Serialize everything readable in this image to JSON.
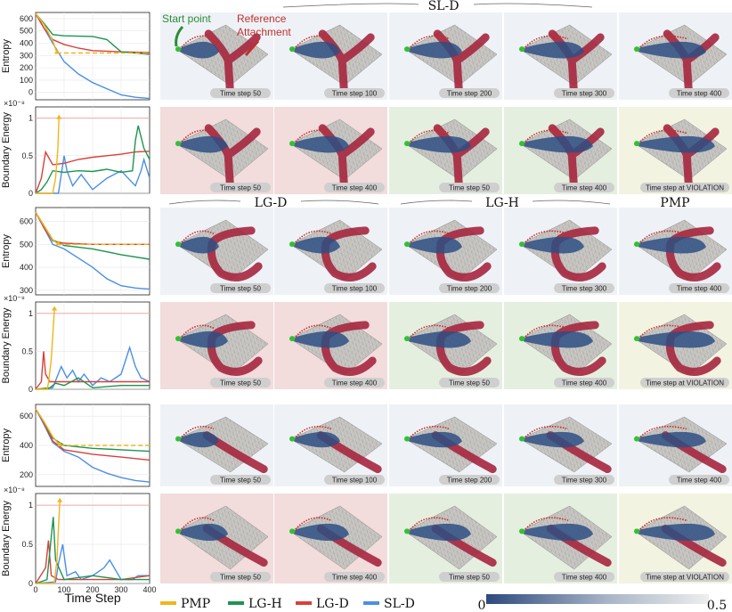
{
  "group_titles": [
    "SL-D",
    "LG-D",
    "LG-H",
    "PMP"
  ],
  "annotations": {
    "start_point": "Start point",
    "reference_attachment": "Reference Attachment"
  },
  "colors": {
    "PMP": "#f2b519",
    "LG-H": "#1e9450",
    "LG-D": "#d8403a",
    "SL-D": "#4a8fe8",
    "tile_blue": "#eef2f7",
    "tile_red": "#f2dcdc",
    "tile_green": "#e5efe0",
    "tile_yellow": "#f3f3e2",
    "cloth_grey": "#c8c7c4",
    "cloth_blue": "#2e4f82",
    "attachment": "#a6263e",
    "start": "#2fc32f"
  },
  "rows": [
    {
      "tiles": [
        {
          "label": "Time step 50",
          "bg": "blue"
        },
        {
          "label": "Time step 100",
          "bg": "blue"
        },
        {
          "label": "Time step 200",
          "bg": "blue"
        },
        {
          "label": "Time step 300",
          "bg": "blue"
        },
        {
          "label": "Time step 400",
          "bg": "blue"
        }
      ]
    },
    {
      "tiles": [
        {
          "label": "Time step 50",
          "bg": "red"
        },
        {
          "label": "Time step 400",
          "bg": "red"
        },
        {
          "label": "Time step 50",
          "bg": "green"
        },
        {
          "label": "Time step 400",
          "bg": "green"
        },
        {
          "label": "Time step at VIOLATION",
          "bg": "yellow"
        }
      ]
    },
    {
      "tiles": [
        {
          "label": "Time step 50",
          "bg": "blue"
        },
        {
          "label": "Time step 100",
          "bg": "blue"
        },
        {
          "label": "Time step 200",
          "bg": "blue"
        },
        {
          "label": "Time step 300",
          "bg": "blue"
        },
        {
          "label": "Time step 400",
          "bg": "blue"
        }
      ]
    },
    {
      "tiles": [
        {
          "label": "Time step 50",
          "bg": "red"
        },
        {
          "label": "Time step 400",
          "bg": "red"
        },
        {
          "label": "Time step 50",
          "bg": "green"
        },
        {
          "label": "Time step 400",
          "bg": "green"
        },
        {
          "label": "Time step at VIOLATION",
          "bg": "yellow"
        }
      ]
    },
    {
      "tiles": [
        {
          "label": "Time step 50",
          "bg": "blue"
        },
        {
          "label": "Time step 100",
          "bg": "blue"
        },
        {
          "label": "Time step 200",
          "bg": "blue"
        },
        {
          "label": "Time step 300",
          "bg": "blue"
        },
        {
          "label": "Time step 400",
          "bg": "blue"
        }
      ]
    },
    {
      "tiles": [
        {
          "label": "Time step 50",
          "bg": "red"
        },
        {
          "label": "Time step 400",
          "bg": "red"
        },
        {
          "label": "Time step 50",
          "bg": "green"
        },
        {
          "label": "Time step 400",
          "bg": "green"
        },
        {
          "label": "Time step at VIOLATION",
          "bg": "yellow"
        }
      ]
    }
  ],
  "shapes": [
    "Y",
    "C",
    "line"
  ],
  "legend": {
    "items": [
      "PMP",
      "LG-H",
      "LG-D",
      "SL-D"
    ],
    "colorbar_min": "0",
    "colorbar_max": "0.5"
  },
  "chart_data": [
    {
      "type": "line",
      "ylabel": "Entropy",
      "xlim": [
        0,
        400
      ],
      "ylim": [
        -60,
        650
      ],
      "yticks": [
        0,
        100,
        200,
        300,
        400,
        500,
        600
      ],
      "series": [
        {
          "name": "PMP",
          "x": [
            0,
            30,
            60,
            75
          ],
          "y": [
            640,
            550,
            420,
            320
          ],
          "dashed_after": {
            "x": [
              75,
              400
            ],
            "y": [
              320,
              320
            ]
          }
        },
        {
          "name": "LG-H",
          "x": [
            0,
            30,
            60,
            100,
            200,
            250,
            300,
            350,
            400
          ],
          "y": [
            640,
            560,
            470,
            460,
            455,
            430,
            330,
            320,
            310
          ]
        },
        {
          "name": "LG-D",
          "x": [
            0,
            30,
            60,
            100,
            150,
            200,
            300,
            400
          ],
          "y": [
            640,
            520,
            430,
            390,
            360,
            340,
            330,
            325
          ]
        },
        {
          "name": "SL-D",
          "x": [
            0,
            30,
            60,
            100,
            150,
            200,
            250,
            300,
            350,
            400
          ],
          "y": [
            640,
            520,
            400,
            250,
            150,
            80,
            30,
            -20,
            -40,
            -50
          ]
        }
      ]
    },
    {
      "type": "line",
      "ylabel": "Boundary Energy",
      "exponent": "×10⁻⁸",
      "xlim": [
        0,
        400
      ],
      "ylim": [
        0,
        1.15
      ],
      "yticks": [
        0.0,
        0.5,
        1.0
      ],
      "threshold": 1.0,
      "series": [
        {
          "name": "PMP",
          "x": [
            0,
            60,
            70,
            78,
            82
          ],
          "y": [
            0,
            0,
            0.2,
            0.6,
            1.0
          ]
        },
        {
          "name": "LG-H",
          "x": [
            0,
            20,
            40,
            60,
            100,
            150,
            200,
            250,
            300,
            340,
            350,
            360,
            380,
            400
          ],
          "y": [
            0,
            0.05,
            0.15,
            0.3,
            0.28,
            0.3,
            0.29,
            0.32,
            0.28,
            0.3,
            0.7,
            0.9,
            0.6,
            0.45
          ]
        },
        {
          "name": "LG-D",
          "x": [
            0,
            20,
            35,
            60,
            100,
            150,
            200,
            250,
            300,
            350,
            400
          ],
          "y": [
            0,
            0.2,
            0.55,
            0.38,
            0.4,
            0.45,
            0.48,
            0.5,
            0.52,
            0.55,
            0.56
          ]
        },
        {
          "name": "SL-D",
          "x": [
            0,
            80,
            100,
            110,
            130,
            160,
            200,
            250,
            300,
            350,
            370,
            380,
            400
          ],
          "y": [
            0,
            0,
            0.5,
            0.3,
            0.1,
            0.25,
            0.05,
            0.2,
            0.3,
            0.1,
            0.3,
            0.45,
            0.2
          ]
        }
      ]
    },
    {
      "type": "line",
      "ylabel": "Entropy",
      "xlim": [
        0,
        400
      ],
      "ylim": [
        280,
        660
      ],
      "yticks": [
        300,
        400,
        500,
        600
      ],
      "series": [
        {
          "name": "PMP",
          "x": [
            0,
            30,
            60,
            80
          ],
          "y": [
            640,
            580,
            520,
            500
          ],
          "dashed_after": {
            "x": [
              80,
              400
            ],
            "y": [
              500,
              500
            ]
          }
        },
        {
          "name": "LG-H",
          "x": [
            0,
            30,
            60,
            100,
            200,
            300,
            400
          ],
          "y": [
            640,
            580,
            520,
            495,
            480,
            455,
            435
          ]
        },
        {
          "name": "LG-D",
          "x": [
            0,
            30,
            60,
            100,
            200,
            300,
            400
          ],
          "y": [
            640,
            570,
            515,
            505,
            500,
            500,
            500
          ]
        },
        {
          "name": "SL-D",
          "x": [
            0,
            30,
            60,
            100,
            150,
            200,
            250,
            300,
            350,
            400
          ],
          "y": [
            640,
            570,
            500,
            480,
            440,
            400,
            350,
            320,
            310,
            305
          ]
        }
      ]
    },
    {
      "type": "line",
      "ylabel": "Boundary Energy",
      "exponent": "×10⁻⁸",
      "xlim": [
        0,
        400
      ],
      "ylim": [
        0,
        1.15
      ],
      "yticks": [
        0.0,
        0.5,
        1.0
      ],
      "threshold": 1.0,
      "series": [
        {
          "name": "PMP",
          "x": [
            0,
            40,
            45,
            55,
            60,
            66
          ],
          "y": [
            0,
            0,
            0.08,
            0.4,
            0.7,
            1.05
          ]
        },
        {
          "name": "LG-H",
          "x": [
            0,
            50,
            70,
            100,
            150,
            200,
            300,
            400
          ],
          "y": [
            0,
            0.02,
            0.08,
            0.05,
            0.15,
            0.02,
            0.05,
            0.05
          ]
        },
        {
          "name": "LG-D",
          "x": [
            0,
            20,
            28,
            35,
            50,
            100,
            200,
            300,
            400
          ],
          "y": [
            0,
            0.1,
            0.5,
            0.2,
            0.1,
            0.1,
            0.1,
            0.1,
            0.1
          ]
        },
        {
          "name": "SL-D",
          "x": [
            0,
            60,
            90,
            110,
            130,
            150,
            170,
            200,
            230,
            260,
            300,
            330,
            350,
            370,
            400
          ],
          "y": [
            0,
            0.02,
            0.3,
            0.15,
            0.25,
            0.1,
            0.2,
            0.05,
            0.15,
            0.1,
            0.2,
            0.55,
            0.3,
            0.15,
            0.1
          ]
        }
      ]
    },
    {
      "type": "line",
      "ylabel": "Entropy",
      "xlim": [
        0,
        400
      ],
      "ylim": [
        120,
        680
      ],
      "yticks": [
        200,
        400,
        600
      ],
      "series": [
        {
          "name": "PMP",
          "x": [
            0,
            30,
            60,
            85
          ],
          "y": [
            650,
            560,
            460,
            400
          ],
          "dashed_after": {
            "x": [
              85,
              400
            ],
            "y": [
              400,
              400
            ]
          }
        },
        {
          "name": "LG-H",
          "x": [
            0,
            30,
            60,
            100,
            200,
            300,
            400
          ],
          "y": [
            650,
            560,
            450,
            400,
            380,
            370,
            360
          ]
        },
        {
          "name": "LG-D",
          "x": [
            0,
            30,
            60,
            100,
            200,
            300,
            400
          ],
          "y": [
            650,
            550,
            430,
            370,
            340,
            320,
            300
          ]
        },
        {
          "name": "SL-D",
          "x": [
            0,
            30,
            60,
            100,
            150,
            200,
            250,
            300,
            350,
            400
          ],
          "y": [
            650,
            540,
            420,
            360,
            320,
            250,
            210,
            180,
            160,
            150
          ]
        }
      ]
    },
    {
      "type": "line",
      "ylabel": "Boundary Energy",
      "exponent": "×10⁻⁸",
      "xlim": [
        0,
        400
      ],
      "ylim": [
        0,
        1.15
      ],
      "yticks": [
        0.0,
        0.5,
        1.0
      ],
      "threshold": 1.0,
      "series": [
        {
          "name": "PMP",
          "x": [
            0,
            65,
            75,
            80,
            85
          ],
          "y": [
            0,
            0,
            0.3,
            0.7,
            1.05
          ]
        },
        {
          "name": "LG-H",
          "x": [
            0,
            40,
            55,
            62,
            70,
            100,
            200,
            300,
            400
          ],
          "y": [
            0,
            0.05,
            0.6,
            0.85,
            0.3,
            0.05,
            0.1,
            0.05,
            0.05
          ]
        },
        {
          "name": "LG-D",
          "x": [
            0,
            35,
            45,
            55,
            80,
            200,
            300,
            400
          ],
          "y": [
            0,
            0.2,
            0.55,
            0.1,
            0.05,
            0.05,
            0.05,
            0.1
          ]
        },
        {
          "name": "SL-D",
          "x": [
            0,
            70,
            80,
            95,
            110,
            140,
            160,
            200,
            240,
            260,
            300,
            340,
            360,
            400
          ],
          "y": [
            0,
            0.02,
            0.25,
            0.5,
            0.1,
            0.15,
            0.05,
            0.1,
            0.2,
            0.3,
            0.05,
            0.05,
            0.1,
            0.1
          ]
        }
      ]
    }
  ]
}
